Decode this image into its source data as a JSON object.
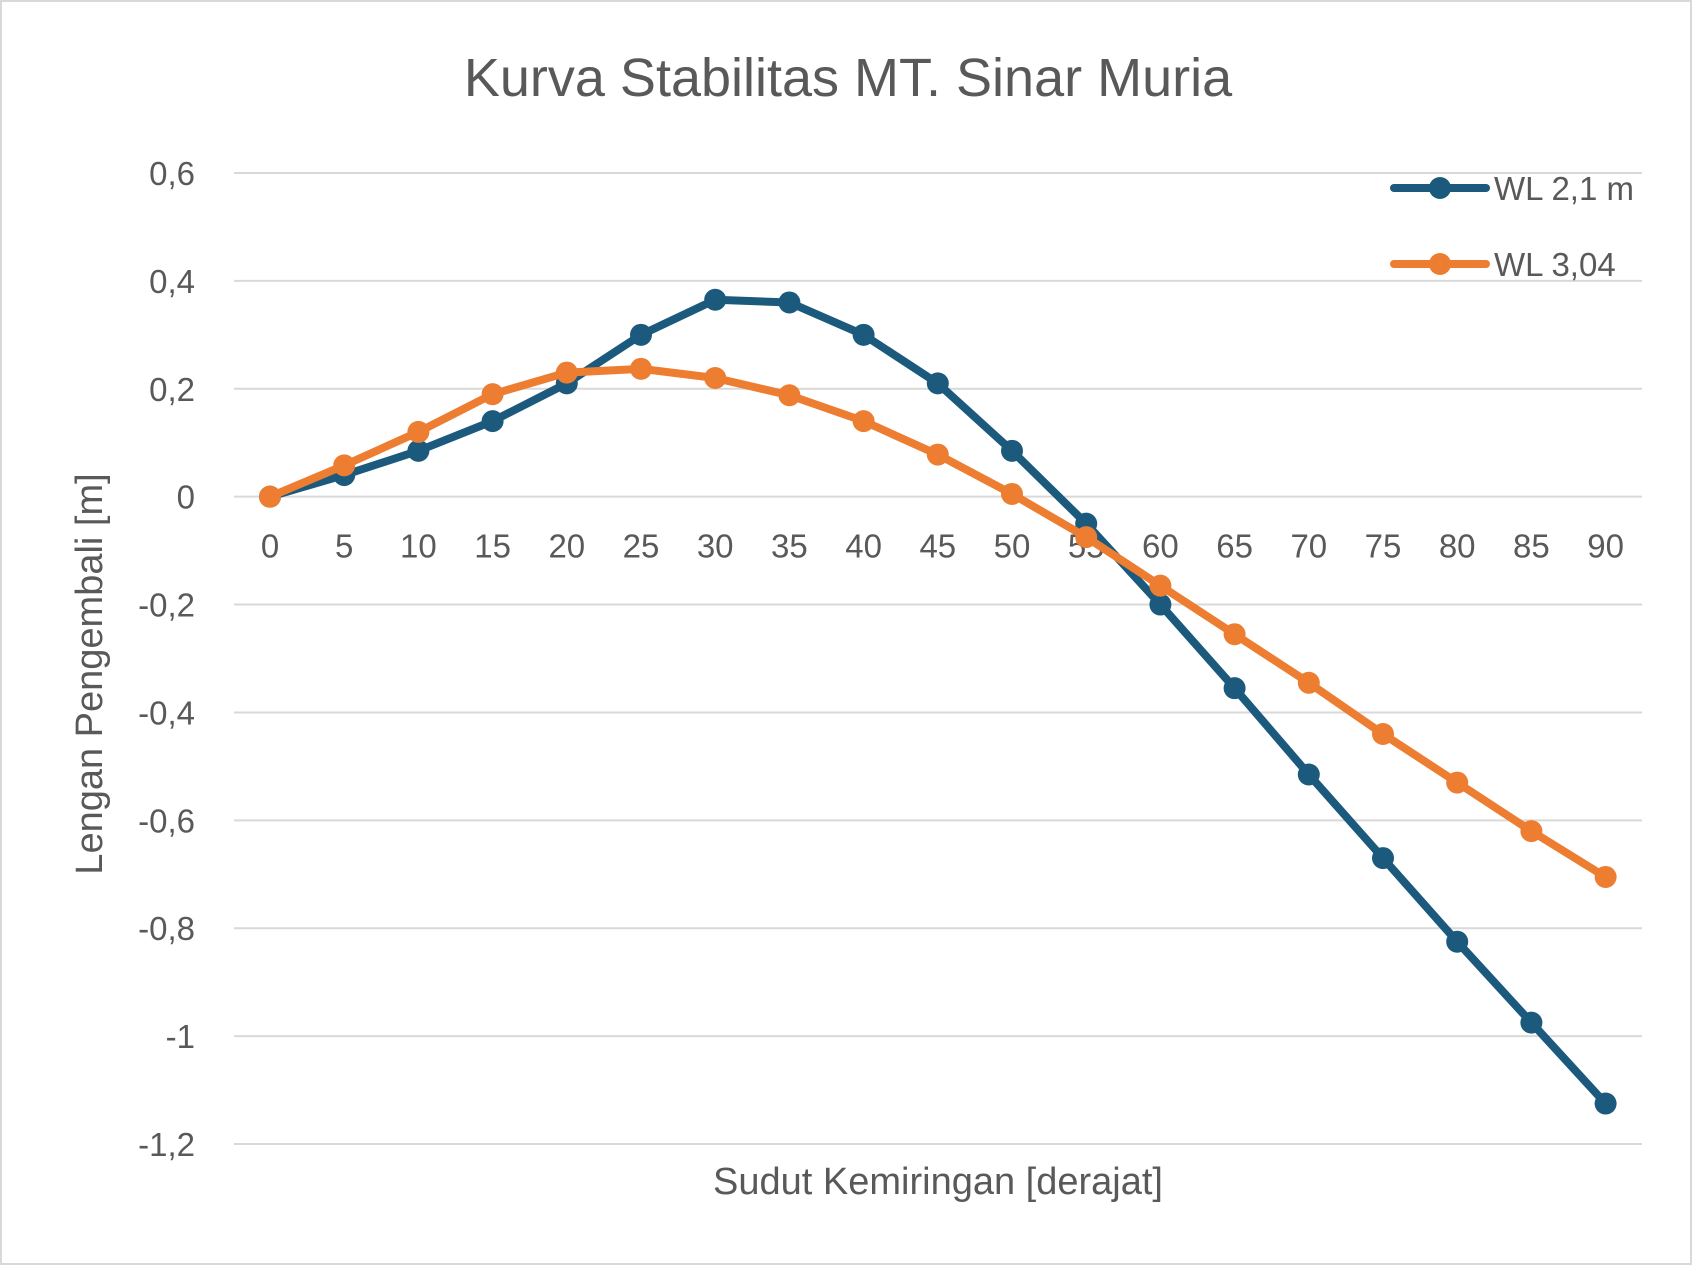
{
  "chart_data": {
    "type": "line",
    "title": "Kurva Stabilitas MT. Sinar Muria",
    "xlabel": "Sudut Kemiringan [derajat]",
    "ylabel": "Lengan Pengembali [m]",
    "categories": [
      "0",
      "5",
      "10",
      "15",
      "20",
      "25",
      "30",
      "35",
      "40",
      "45",
      "50",
      "55",
      "60",
      "65",
      "70",
      "75",
      "80",
      "85",
      "90"
    ],
    "ylim": [
      -1.2,
      0.6
    ],
    "yticks": [
      0.6,
      0.4,
      0.2,
      0,
      -0.2,
      -0.4,
      -0.6,
      -0.8,
      -1,
      -1.2
    ],
    "ytick_labels": [
      "0,6",
      "0,4",
      "0,2",
      "0",
      "-0,2",
      "-0,4",
      "-0,6",
      "-0,8",
      "-1",
      "-1,2"
    ],
    "grid": true,
    "legend_position": "top-right",
    "series": [
      {
        "name": "WL 2,1 m",
        "color": "#1c5a7d",
        "values": [
          0,
          0.04,
          0.085,
          0.14,
          0.21,
          0.3,
          0.365,
          0.36,
          0.3,
          0.21,
          0.085,
          -0.05,
          -0.2,
          -0.355,
          -0.515,
          -0.67,
          -0.825,
          -0.975,
          -1.125
        ]
      },
      {
        "name": "WL 3,04",
        "color": "#ed7d31",
        "values": [
          0,
          0.058,
          0.12,
          0.19,
          0.23,
          0.237,
          0.22,
          0.188,
          0.14,
          0.078,
          0.005,
          -0.075,
          -0.165,
          -0.255,
          -0.345,
          -0.44,
          -0.53,
          -0.62,
          -0.705
        ]
      }
    ]
  }
}
